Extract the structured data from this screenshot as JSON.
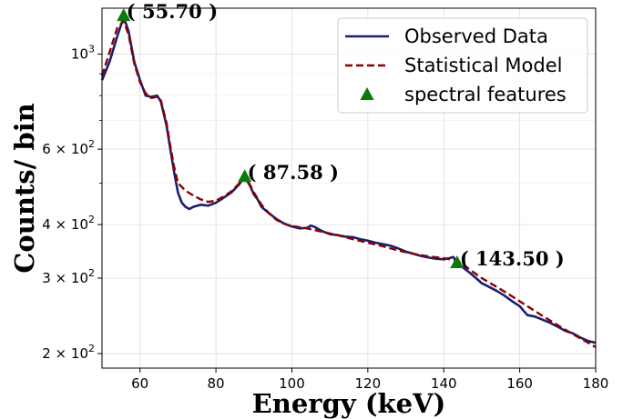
{
  "chart_data": {
    "type": "line",
    "title": "",
    "xlabel": "Energy (keV)",
    "ylabel": "Counts/ bin",
    "xlim": [
      50,
      180
    ],
    "ylim": [
      185,
      1280
    ],
    "yscale": "log",
    "grid": true,
    "legend_position": "top-right",
    "x_ticks": [
      60,
      80,
      100,
      120,
      140,
      160,
      180
    ],
    "x_tick_labels": [
      "60",
      "80",
      "100",
      "120",
      "140",
      "160",
      "180"
    ],
    "y_ticks": [
      200,
      300,
      400,
      600,
      1000
    ],
    "y_tick_labels": [
      {
        "base": "2 × 10",
        "exp": "2"
      },
      {
        "base": "3 × 10",
        "exp": "2"
      },
      {
        "base": "4 × 10",
        "exp": "2"
      },
      {
        "base": "6 × 10",
        "exp": "2"
      },
      {
        "base": "10",
        "exp": "3"
      }
    ],
    "series": [
      {
        "name": "Observed Data",
        "color": "#1a1f6e",
        "style": "solid",
        "points": [
          [
            50,
            870
          ],
          [
            52,
            960
          ],
          [
            54,
            1100
          ],
          [
            55.7,
            1220
          ],
          [
            57,
            1130
          ],
          [
            58.5,
            960
          ],
          [
            60,
            870
          ],
          [
            61.5,
            800
          ],
          [
            63,
            795
          ],
          [
            64.5,
            800
          ],
          [
            65.5,
            775
          ],
          [
            67,
            680
          ],
          [
            68,
            600
          ],
          [
            69,
            530
          ],
          [
            70,
            475
          ],
          [
            71,
            450
          ],
          [
            72,
            440
          ],
          [
            73,
            435
          ],
          [
            74,
            440
          ],
          [
            76,
            445
          ],
          [
            78,
            443
          ],
          [
            80,
            450
          ],
          [
            82,
            462
          ],
          [
            84,
            475
          ],
          [
            86,
            495
          ],
          [
            87.58,
            518
          ],
          [
            89,
            492
          ],
          [
            90,
            470
          ],
          [
            91,
            458
          ],
          [
            92,
            440
          ],
          [
            94,
            425
          ],
          [
            96,
            412
          ],
          [
            98,
            402
          ],
          [
            100,
            396
          ],
          [
            102,
            392
          ],
          [
            104,
            393
          ],
          [
            105,
            398
          ],
          [
            106,
            395
          ],
          [
            108,
            386
          ],
          [
            110,
            380
          ],
          [
            112,
            378
          ],
          [
            114,
            375
          ],
          [
            116,
            374
          ],
          [
            118,
            370
          ],
          [
            120,
            367
          ],
          [
            122,
            363
          ],
          [
            124,
            360
          ],
          [
            126,
            357
          ],
          [
            128,
            352
          ],
          [
            130,
            346
          ],
          [
            132,
            342
          ],
          [
            134,
            338
          ],
          [
            136,
            335
          ],
          [
            138,
            333
          ],
          [
            140,
            332
          ],
          [
            141.5,
            334
          ],
          [
            142.5,
            336
          ],
          [
            143.5,
            326
          ],
          [
            145,
            318
          ],
          [
            147,
            308
          ],
          [
            148.5,
            300
          ],
          [
            150,
            292
          ],
          [
            152,
            286
          ],
          [
            154,
            280
          ],
          [
            156,
            273
          ],
          [
            158,
            265
          ],
          [
            160,
            258
          ],
          [
            162,
            246
          ],
          [
            164,
            244
          ],
          [
            166,
            240
          ],
          [
            168,
            236
          ],
          [
            170,
            231
          ],
          [
            172,
            226
          ],
          [
            174,
            223
          ],
          [
            176,
            218
          ],
          [
            178,
            214
          ],
          [
            180,
            212
          ]
        ]
      },
      {
        "name": "Statistical Model",
        "color": "#8b0000",
        "style": "dashed",
        "points": [
          [
            50,
            890
          ],
          [
            52,
            1010
          ],
          [
            54,
            1150
          ],
          [
            55.7,
            1195
          ],
          [
            57,
            1110
          ],
          [
            58.5,
            950
          ],
          [
            60,
            860
          ],
          [
            61.5,
            810
          ],
          [
            63,
            790
          ],
          [
            64.5,
            795
          ],
          [
            65.5,
            780
          ],
          [
            67,
            690
          ],
          [
            68,
            610
          ],
          [
            69,
            545
          ],
          [
            70,
            500
          ],
          [
            72,
            480
          ],
          [
            74,
            468
          ],
          [
            76,
            458
          ],
          [
            78,
            452
          ],
          [
            80,
            455
          ],
          [
            82,
            465
          ],
          [
            84,
            478
          ],
          [
            86,
            498
          ],
          [
            87.58,
            518
          ],
          [
            89,
            495
          ],
          [
            90,
            475
          ],
          [
            92,
            445
          ],
          [
            94,
            425
          ],
          [
            96,
            410
          ],
          [
            98,
            402
          ],
          [
            100,
            397
          ],
          [
            104,
            392
          ],
          [
            108,
            385
          ],
          [
            112,
            378
          ],
          [
            116,
            370
          ],
          [
            120,
            363
          ],
          [
            124,
            356
          ],
          [
            128,
            348
          ],
          [
            132,
            342
          ],
          [
            136,
            337
          ],
          [
            140,
            334
          ],
          [
            143.5,
            330
          ],
          [
            146,
            318
          ],
          [
            150,
            300
          ],
          [
            154,
            286
          ],
          [
            158,
            272
          ],
          [
            162,
            258
          ],
          [
            166,
            245
          ],
          [
            170,
            233
          ],
          [
            174,
            222
          ],
          [
            178,
            212
          ],
          [
            180,
            207
          ]
        ]
      },
      {
        "name": "spectral features",
        "color": "#0a7a0a",
        "style": "marker-triangle",
        "points": [
          [
            55.7,
            1230
          ],
          [
            87.58,
            518
          ],
          [
            143.5,
            326
          ]
        ]
      }
    ],
    "annotations": [
      {
        "text": "( 55.70 )",
        "x": 55.7,
        "y": 1230
      },
      {
        "text": "( 87.58 )",
        "x": 87.58,
        "y": 518
      },
      {
        "text": "( 143.50 )",
        "x": 143.5,
        "y": 326
      }
    ]
  }
}
